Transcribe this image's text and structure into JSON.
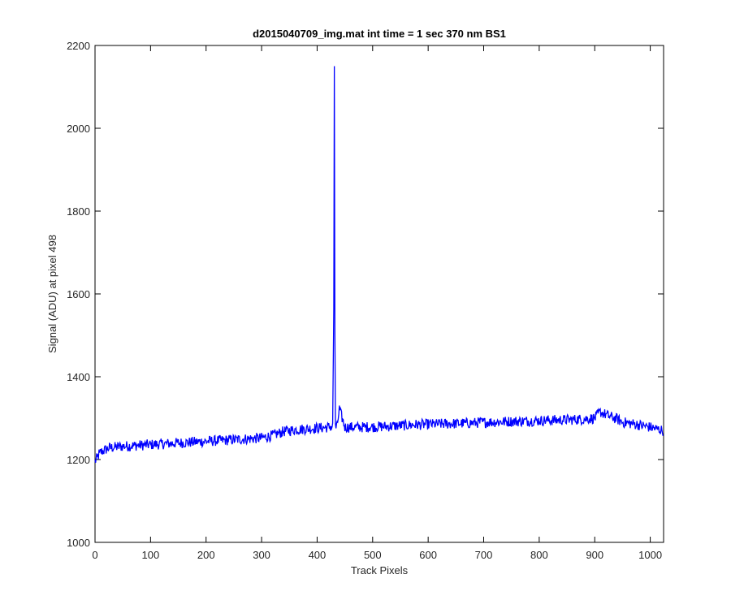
{
  "chart_data": {
    "type": "line",
    "title": "d2015040709_img.mat int time = 1 sec  370 nm BS1",
    "xlabel": "Track Pixels",
    "ylabel": "Signal (ADU) at pixel 498",
    "xlim": [
      0,
      1024
    ],
    "ylim": [
      1000,
      2200
    ],
    "xticks": [
      0,
      100,
      200,
      300,
      400,
      500,
      600,
      700,
      800,
      900,
      1000
    ],
    "xtick_labels": [
      "0",
      "100",
      "200",
      "300",
      "400",
      "500",
      "600",
      "700",
      "800",
      "900",
      "1000"
    ],
    "yticks": [
      1000,
      1200,
      1400,
      1600,
      1800,
      2000,
      2200
    ],
    "ytick_labels": [
      "1000",
      "1200",
      "1400",
      "1600",
      "1800",
      "2000",
      "2200"
    ],
    "grid": false,
    "legend": "none",
    "series": [
      {
        "color": "#0000ff",
        "x": [
          0,
          10,
          25,
          50,
          75,
          100,
          125,
          150,
          175,
          200,
          225,
          250,
          275,
          300,
          320,
          340,
          360,
          380,
          400,
          420,
          428,
          430,
          431,
          432,
          433,
          434,
          436,
          440,
          450,
          475,
          500,
          525,
          550,
          575,
          600,
          625,
          650,
          675,
          700,
          725,
          750,
          775,
          800,
          825,
          850,
          875,
          900,
          910,
          925,
          940,
          950,
          975,
          1000,
          1023
        ],
        "y": [
          1195,
          1218,
          1228,
          1232,
          1234,
          1236,
          1238,
          1240,
          1242,
          1244,
          1246,
          1248,
          1250,
          1252,
          1258,
          1268,
          1272,
          1274,
          1276,
          1278,
          1280,
          1565,
          2150,
          1510,
          1285,
          1278,
          1280,
          1322,
          1278,
          1278,
          1279,
          1280,
          1282,
          1284,
          1285,
          1286,
          1287,
          1288,
          1290,
          1291,
          1292,
          1293,
          1294,
          1295,
          1296,
          1297,
          1300,
          1315,
          1305,
          1298,
          1290,
          1285,
          1278,
          1270
        ]
      }
    ]
  }
}
